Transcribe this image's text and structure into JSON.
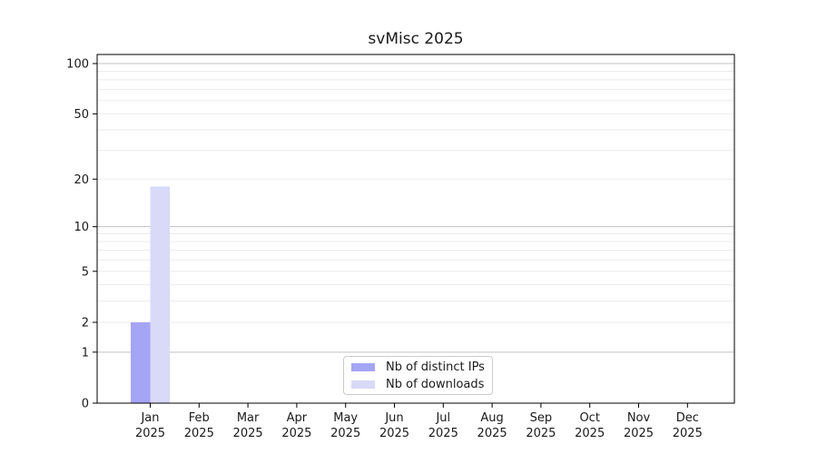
{
  "title": "svMisc 2025",
  "colors": {
    "distinct_ips": "#a5a5f5",
    "downloads": "#d9d9f8",
    "major_grid": "#c3c3c3",
    "minor_grid": "#ebebeb",
    "spine": "#000000",
    "text": "#1a1a1a",
    "legend_border": "#cccccc",
    "background": "#ffffff"
  },
  "chart_data": {
    "type": "bar",
    "title": "svMisc 2025",
    "categories": [
      "Jan",
      "Feb",
      "Mar",
      "Apr",
      "May",
      "Jun",
      "Jul",
      "Aug",
      "Sep",
      "Oct",
      "Nov",
      "Dec"
    ],
    "category_year": "2025",
    "series": [
      {
        "name": "Nb of distinct IPs",
        "color": "#a5a5f5",
        "values": [
          2,
          0,
          0,
          0,
          0,
          0,
          0,
          0,
          0,
          0,
          0,
          0
        ]
      },
      {
        "name": "Nb of downloads",
        "color": "#d9d9f8",
        "values": [
          18,
          0,
          0,
          0,
          0,
          0,
          0,
          0,
          0,
          0,
          0,
          0
        ]
      }
    ],
    "xlabel": "",
    "ylabel": "",
    "y_scale": "log1p",
    "y_ticks": [
      0,
      1,
      2,
      5,
      10,
      20,
      50,
      100
    ],
    "ylim": [
      0,
      113
    ],
    "grid": "horizontal",
    "grid_major_values": [
      1,
      10,
      100
    ],
    "grid_minor_values": [
      2,
      3,
      4,
      5,
      6,
      7,
      8,
      9,
      20,
      30,
      40,
      50,
      60,
      70,
      80,
      90
    ],
    "legend_position": "inside-bottom-center"
  },
  "legend": {
    "items": [
      {
        "label": "Nb of distinct IPs",
        "color": "#a5a5f5"
      },
      {
        "label": "Nb of downloads",
        "color": "#d9d9f8"
      }
    ]
  }
}
